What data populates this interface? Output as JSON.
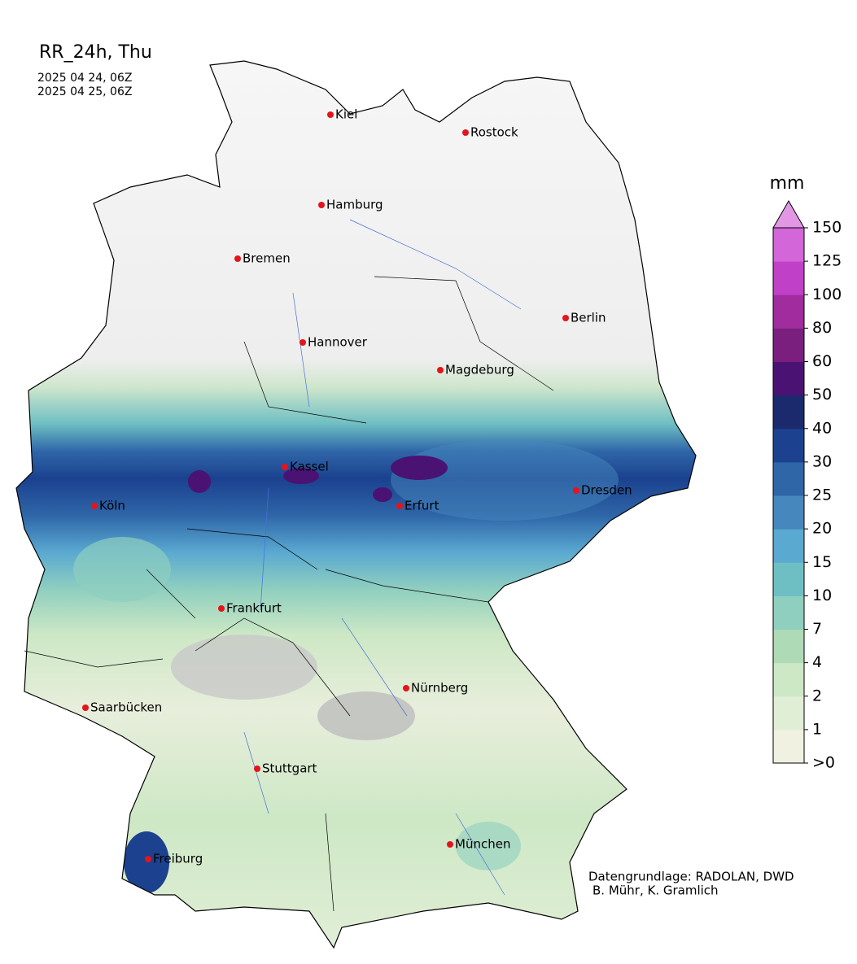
{
  "header": {
    "title": "RR_24h, Thu",
    "dates": [
      "2025 04 24, 06Z",
      "2025 04 25, 06Z"
    ]
  },
  "legend": {
    "unit": "mm",
    "ticks": [
      {
        "value": 0,
        "label": ">0"
      },
      1,
      2,
      4,
      7,
      10,
      15,
      20,
      25,
      30,
      40,
      50,
      60,
      80,
      100,
      125,
      150
    ],
    "colors": [
      "#f0f1e1",
      "#e1eed6",
      "#cde8c5",
      "#afdab6",
      "#8fcfbf",
      "#6ebfc3",
      "#5aa9d1",
      "#4688bd",
      "#2f66a8",
      "#1b418f",
      "#1a2a6c",
      "#4a1373",
      "#7a1f7e",
      "#a02c9e",
      "#c040c8",
      "#d366d8"
    ],
    "extend_color": "#e197e3"
  },
  "cities": [
    "Kiel",
    "Rostock",
    "Hamburg",
    "Bremen",
    "Berlin",
    "Hannover",
    "Magdeburg",
    "Kassel",
    "Dresden",
    "Köln",
    "Erfurt",
    "Frankfurt",
    "Nürnberg",
    "Saarbücken",
    "Stuttgart",
    "München",
    "Freiburg"
  ],
  "credits": [
    "Datengrundlage: RADOLAN, DWD",
    "B. Mühr, K. Gramlich"
  ]
}
